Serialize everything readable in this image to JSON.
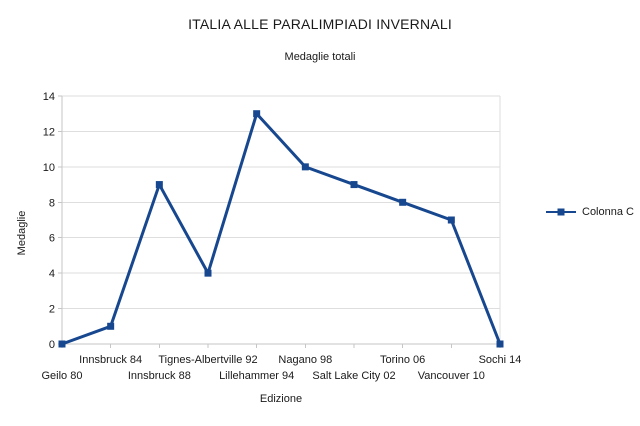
{
  "chart_data": {
    "type": "line",
    "title": "ITALIA ALLE PARALIMPIADI INVERNALI",
    "subtitle": "Medaglie totali",
    "xlabel": "Edizione",
    "ylabel": "Medaglie",
    "categories": [
      "Geilo 80",
      "Innsbruck 84",
      "Innsbruck 88",
      "Tignes-Albertville 92",
      "Lillehammer 94",
      "Nagano 98",
      "Salt Lake City 02",
      "Torino 06",
      "Vancouver 10",
      "Sochi 14"
    ],
    "series": [
      {
        "name": "Colonna C",
        "values": [
          0,
          1,
          9,
          4,
          13,
          10,
          9,
          8,
          7,
          0
        ],
        "color": "#17478F",
        "marker": "square"
      }
    ],
    "ylim": [
      0,
      14
    ],
    "yticks": [
      0,
      2,
      4,
      6,
      8,
      10,
      12,
      14
    ],
    "grid": "horizontal",
    "legend_position": "right",
    "x_label_stagger": "two-row",
    "colors": {
      "gridline": "#DEDEDE",
      "axis": "#C6C6C6",
      "text": "#1A1A1A",
      "background": "#FFFFFF"
    }
  }
}
